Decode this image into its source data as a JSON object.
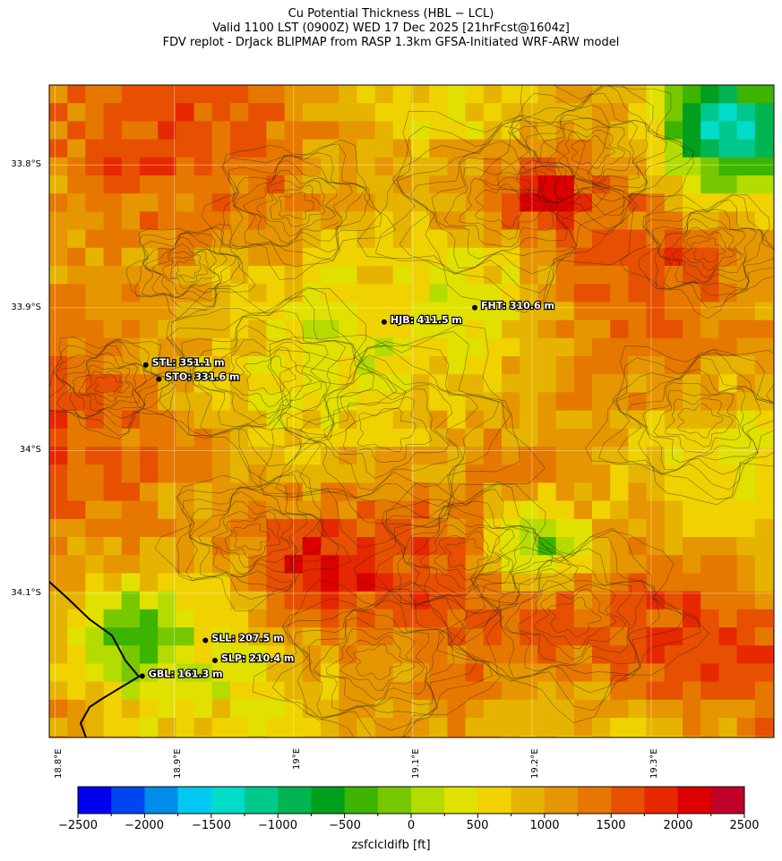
{
  "title": {
    "line1": "Cu Potential Thickness (HBL − LCL)",
    "line2": "Valid 1100 LST (0900Z) WED 17 Dec 2025 [21hrFcst@1604z]",
    "line3": "FDV replot - DrJack BLIPMAP from RASP 1.3km GFSA-Initiated WRF-ARW model"
  },
  "lat_labels": [
    "33.8°S",
    "33.9°S",
    "34°S",
    "34.1°S"
  ],
  "lon_labels": [
    "18.8°E",
    "18.9°E",
    "19°E",
    "19.1°E",
    "19.2°E",
    "19.3°E"
  ],
  "sites": [
    {
      "code": "HJB",
      "label": "HJB: 411.5 m",
      "lon": 19.076,
      "lat": -33.91
    },
    {
      "code": "FHT",
      "label": "FHT: 310.6 m",
      "lon": 19.152,
      "lat": -33.9
    },
    {
      "code": "STL",
      "label": "STL: 351.1 m",
      "lon": 18.876,
      "lat": -33.94
    },
    {
      "code": "STO",
      "label": "STO: 331.6 m",
      "lon": 18.887,
      "lat": -33.95
    },
    {
      "code": "SLL",
      "label": "SLL: 207.5 m",
      "lon": 18.926,
      "lat": -34.133
    },
    {
      "code": "SLP",
      "label": "SLP: 210.4 m",
      "lon": 18.934,
      "lat": -34.147
    },
    {
      "code": "GBL",
      "label": "GBL: 161.3 m",
      "lon": 18.873,
      "lat": -34.158
    }
  ],
  "colorbar": {
    "label": "zsfclcldifb [ft]",
    "ticks": [
      "−2500",
      "−2000",
      "−1500",
      "−1000",
      "−500",
      "0",
      "500",
      "1000",
      "1500",
      "2000",
      "2500"
    ],
    "colors": [
      "#0000f0",
      "#0046f0",
      "#008ce8",
      "#00c8f0",
      "#00dcc8",
      "#00c88c",
      "#00b450",
      "#00a01e",
      "#3cb400",
      "#78c800",
      "#b4dc00",
      "#e1e100",
      "#f0d200",
      "#e6b400",
      "#e69600",
      "#e67800",
      "#e65000",
      "#e62800",
      "#dc0000",
      "#c00028"
    ]
  },
  "map_bounds": {
    "lon_min": 18.795,
    "lon_max": 19.403,
    "lat_max": -33.744,
    "lat_min": -34.201
  },
  "legend_note": "Field colors follow the colorbar (mostly 500–2000 ft orange/yellow, with green pockets NE and SE-central)"
}
